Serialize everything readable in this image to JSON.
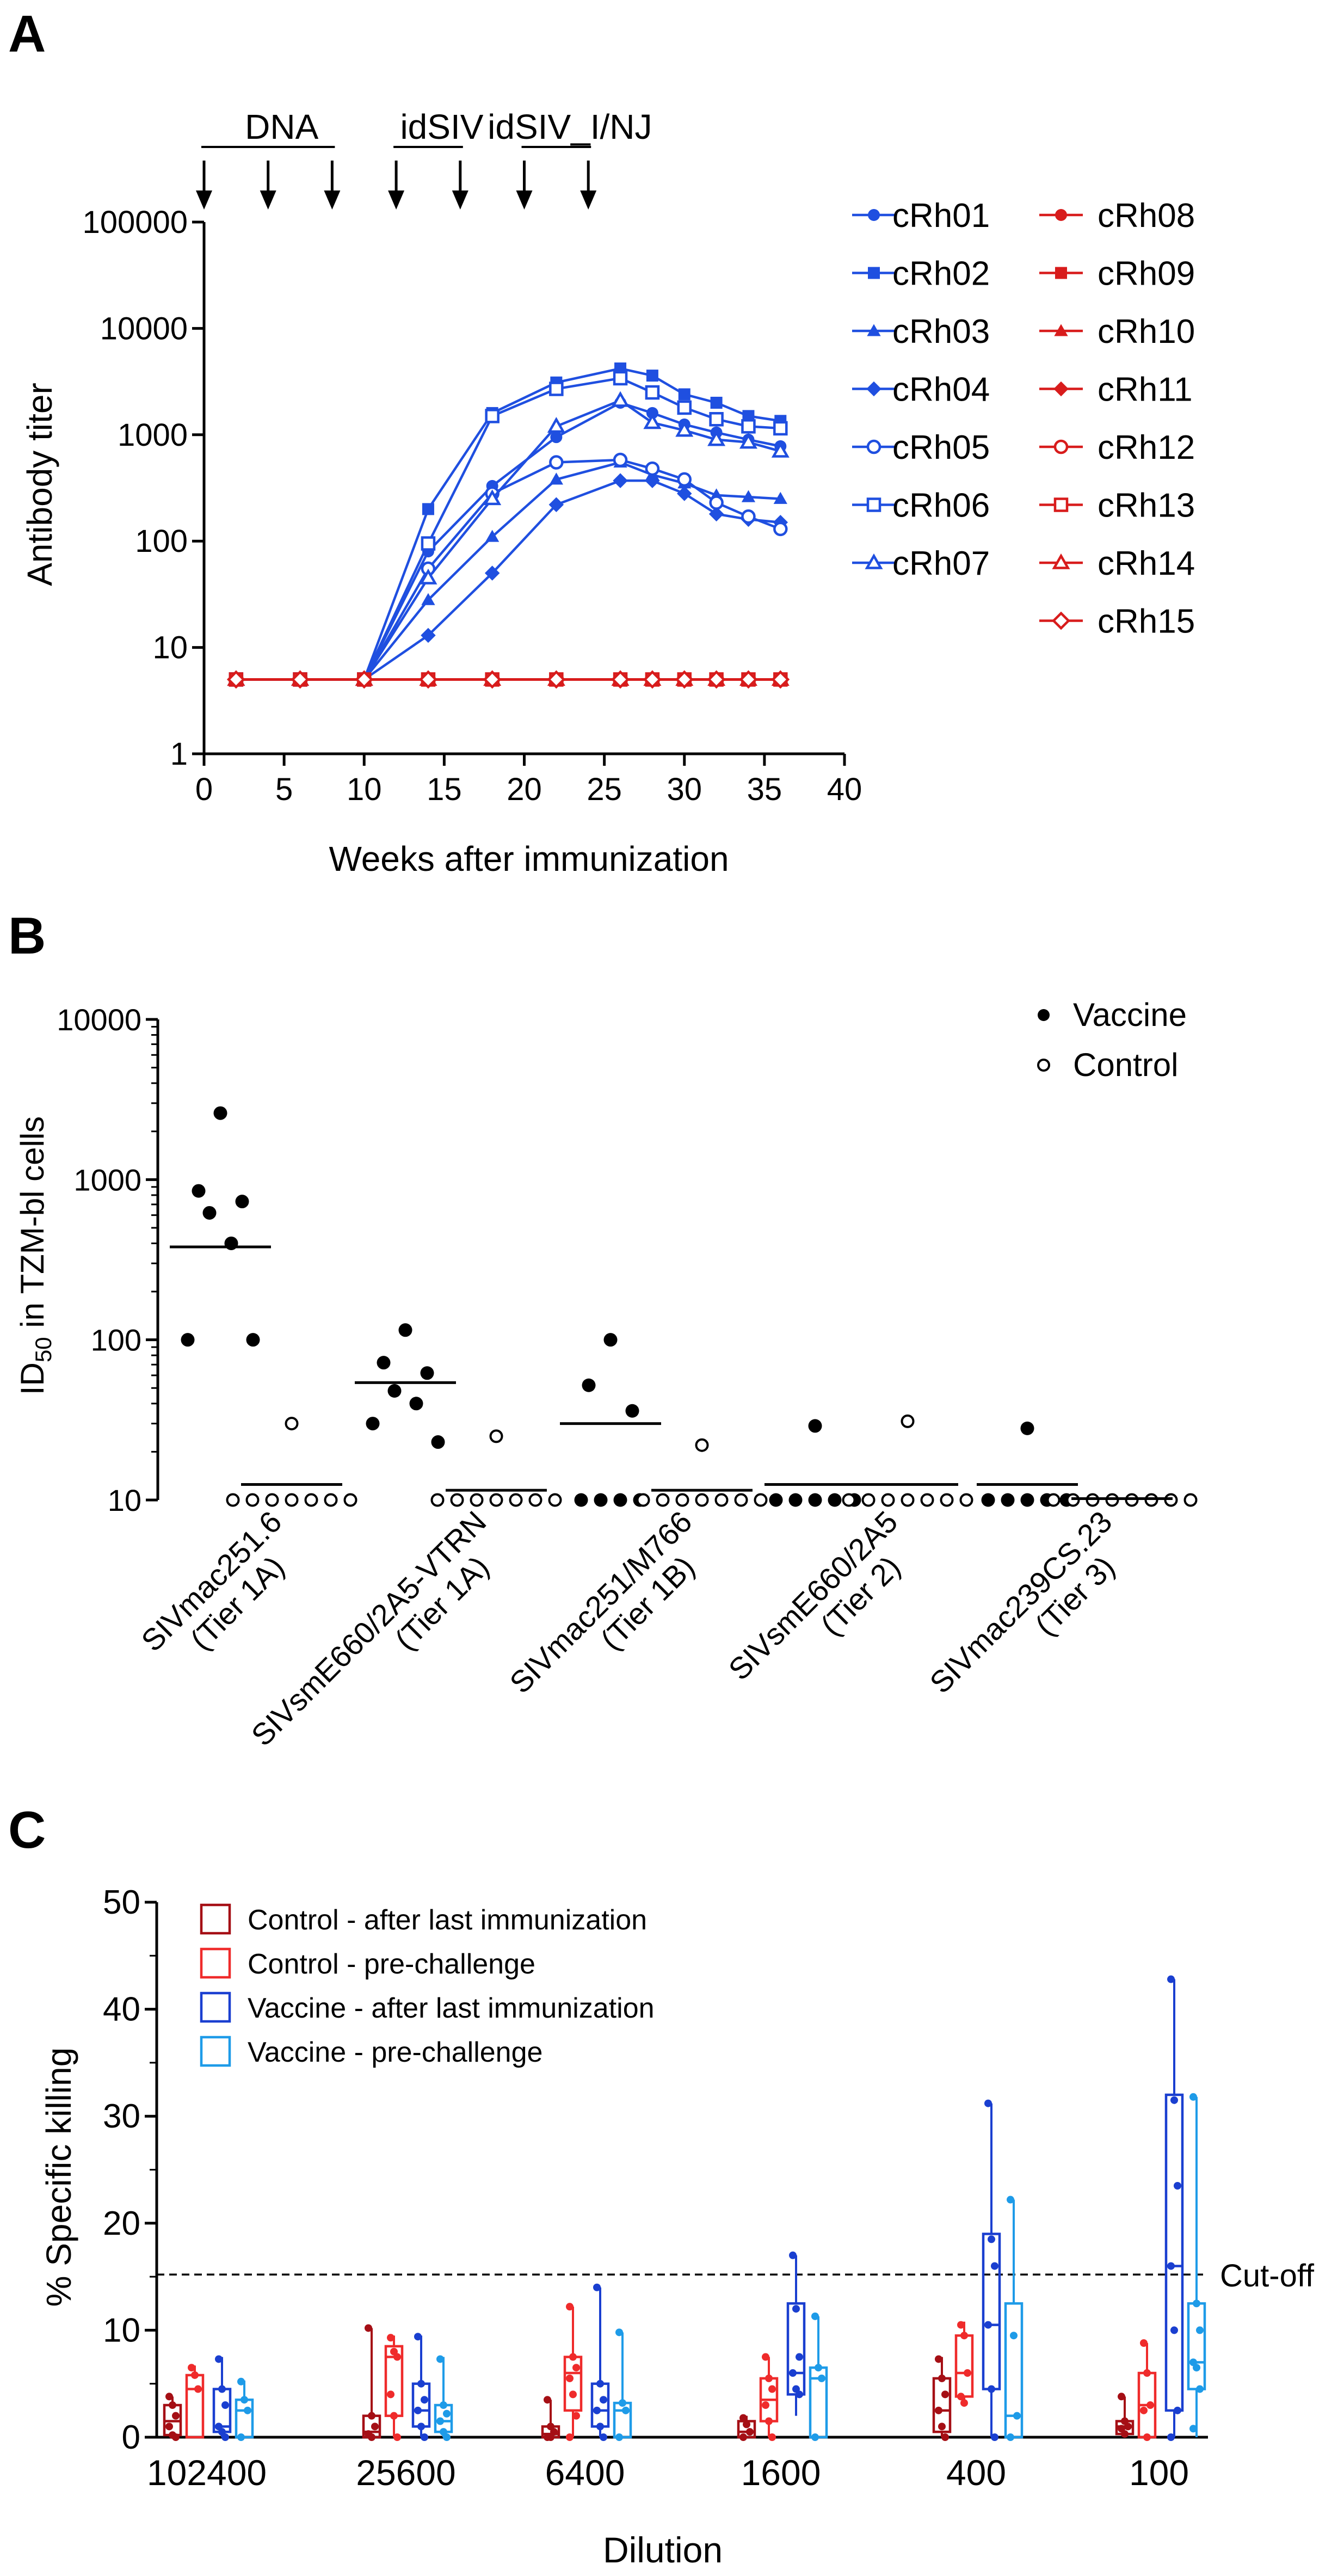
{
  "panels": {
    "A": {
      "letter": "A"
    },
    "B": {
      "letter": "B"
    },
    "C": {
      "letter": "C"
    }
  },
  "colors": {
    "vaccine_group": "#1f4fe0",
    "control_group": "#d81c1c",
    "control_after": "#a50f15",
    "control_pre": "#ef2b2b",
    "vaccine_after": "#1a3fd0",
    "vaccine_pre": "#1e9be8"
  },
  "chart_data": [
    {
      "type": "line",
      "panel": "A",
      "xlabel": "Weeks after immunization",
      "ylabel": "Antibody titer",
      "yscale": "log",
      "xlim": [
        0,
        40
      ],
      "ylim": [
        1,
        100000
      ],
      "x_ticks": [
        "0",
        "5",
        "10",
        "15",
        "20",
        "25",
        "30",
        "35",
        "40"
      ],
      "y_ticks": [
        "1",
        "10",
        "100",
        "1000",
        "10000",
        "100000"
      ],
      "immunization_phases": [
        {
          "label": "DNA",
          "weeks": [
            0,
            4,
            8
          ]
        },
        {
          "label": "idSIV",
          "weeks": [
            12,
            16
          ]
        },
        {
          "label": "idSIV_I/NJ",
          "weeks": [
            20,
            24
          ]
        }
      ],
      "x": [
        2,
        6,
        10,
        14,
        18,
        22,
        26,
        28,
        30,
        32,
        34,
        36
      ],
      "series": [
        {
          "name": "cRh01",
          "group": "vaccine",
          "marker": "circle",
          "fill": "filled",
          "values": [
            5,
            5,
            5,
            80,
            330,
            950,
            2000,
            1600,
            1250,
            1050,
            900,
            780
          ]
        },
        {
          "name": "cRh02",
          "group": "vaccine",
          "marker": "square",
          "fill": "filled",
          "values": [
            5,
            5,
            5,
            200,
            1600,
            3100,
            4200,
            3600,
            2400,
            2000,
            1500,
            1350
          ]
        },
        {
          "name": "cRh03",
          "group": "vaccine",
          "marker": "triangle",
          "fill": "filled",
          "values": [
            5,
            5,
            5,
            28,
            110,
            380,
            550,
            420,
            350,
            270,
            260,
            250
          ]
        },
        {
          "name": "cRh04",
          "group": "vaccine",
          "marker": "diamond",
          "fill": "filled",
          "values": [
            5,
            5,
            5,
            13,
            50,
            220,
            370,
            370,
            280,
            180,
            160,
            150
          ]
        },
        {
          "name": "cRh05",
          "group": "vaccine",
          "marker": "circle",
          "fill": "open",
          "values": [
            5,
            5,
            5,
            55,
            280,
            550,
            580,
            480,
            380,
            230,
            170,
            130
          ]
        },
        {
          "name": "cRh06",
          "group": "vaccine",
          "marker": "square",
          "fill": "open",
          "values": [
            5,
            5,
            5,
            95,
            1500,
            2700,
            3400,
            2500,
            1800,
            1400,
            1200,
            1150
          ]
        },
        {
          "name": "cRh07",
          "group": "vaccine",
          "marker": "triangle",
          "fill": "open",
          "values": [
            5,
            5,
            5,
            45,
            250,
            1200,
            2100,
            1300,
            1100,
            900,
            850,
            700
          ]
        },
        {
          "name": "cRh08",
          "group": "control",
          "marker": "circle",
          "fill": "filled",
          "values": [
            5,
            5,
            5,
            5,
            5,
            5,
            5,
            5,
            5,
            5,
            5,
            5
          ]
        },
        {
          "name": "cRh09",
          "group": "control",
          "marker": "square",
          "fill": "filled",
          "values": [
            5,
            5,
            5,
            5,
            5,
            5,
            5,
            5,
            5,
            5,
            5,
            5
          ]
        },
        {
          "name": "cRh10",
          "group": "control",
          "marker": "triangle",
          "fill": "filled",
          "values": [
            5,
            5,
            5,
            5,
            5,
            5,
            5,
            5,
            5,
            5,
            5,
            5
          ]
        },
        {
          "name": "cRh11",
          "group": "control",
          "marker": "diamond",
          "fill": "filled",
          "values": [
            5,
            5,
            5,
            5,
            5,
            5,
            5,
            5,
            5,
            5,
            5,
            5
          ]
        },
        {
          "name": "cRh12",
          "group": "control",
          "marker": "circle",
          "fill": "open",
          "values": [
            5,
            5,
            5,
            5,
            5,
            5,
            5,
            5,
            5,
            5,
            5,
            5
          ]
        },
        {
          "name": "cRh13",
          "group": "control",
          "marker": "square",
          "fill": "open",
          "values": [
            5,
            5,
            5,
            5,
            5,
            5,
            5,
            5,
            5,
            5,
            5,
            5
          ]
        },
        {
          "name": "cRh14",
          "group": "control",
          "marker": "triangle",
          "fill": "open",
          "values": [
            5,
            5,
            5,
            5,
            5,
            5,
            5,
            5,
            5,
            5,
            5,
            5
          ]
        },
        {
          "name": "cRh15",
          "group": "control",
          "marker": "diamond",
          "fill": "open",
          "values": [
            5,
            5,
            5,
            5,
            5,
            5,
            5,
            5,
            5,
            5,
            5,
            5
          ]
        }
      ]
    },
    {
      "type": "scatter",
      "panel": "B",
      "ylabel": "ID50 in TZM-bl cells",
      "ylabel_main": "ID",
      "ylabel_sub": "50",
      "ylabel_rest": " in TZM-bl cells",
      "yscale": "log",
      "ylim": [
        10,
        10000
      ],
      "y_ticks": [
        "10",
        "100",
        "1000",
        "10000"
      ],
      "legend": [
        {
          "label": "Vaccine",
          "marker": "filled"
        },
        {
          "label": "Control",
          "marker": "open"
        }
      ],
      "categories": [
        {
          "name": "SIVmac251.6",
          "tier": "(Tier 1A)",
          "vaccine": [
            2600,
            850,
            730,
            620,
            400,
            100,
            100
          ],
          "vaccine_median": 380,
          "control": [
            30,
            10,
            10,
            10,
            10,
            10,
            10,
            10
          ],
          "control_median": 12.5
        },
        {
          "name": "SIVsmE660/2A5-VTRN",
          "tier": "(Tier 1A)",
          "vaccine": [
            115,
            72,
            62,
            48,
            40,
            30,
            23
          ],
          "vaccine_median": 54,
          "control": [
            25,
            10,
            10,
            10,
            10,
            10,
            10,
            10
          ],
          "control_median": 11.5
        },
        {
          "name": "SIVmac251/M766",
          "tier": "(Tier 1B)",
          "vaccine": [
            100,
            52,
            36,
            10,
            10,
            10,
            10
          ],
          "vaccine_median": 30,
          "control": [
            22,
            10,
            10,
            10,
            10,
            10,
            10,
            10
          ],
          "control_median": 11.5
        },
        {
          "name": "SIVsmE660/2A5",
          "tier": "(Tier 2)",
          "vaccine": [
            29,
            10,
            10,
            10,
            10,
            10
          ],
          "vaccine_median": 12.5,
          "control": [
            31,
            10,
            10,
            10,
            10,
            10,
            10,
            10
          ],
          "control_median": 12.5
        },
        {
          "name": "SIVmac239CS.23",
          "tier": "(Tier 3)",
          "vaccine": [
            28,
            10,
            10,
            10,
            10,
            10
          ],
          "vaccine_median": 12.5,
          "control": [
            10,
            10,
            10,
            10,
            10,
            10,
            10,
            10
          ],
          "control_median": 10.2
        }
      ]
    },
    {
      "type": "box",
      "panel": "C",
      "xlabel": "Dilution",
      "ylabel": "% Specific killing",
      "ylim": [
        0,
        50
      ],
      "y_ticks": [
        "0",
        "10",
        "20",
        "30",
        "40",
        "50"
      ],
      "cutoff": {
        "value": 15.2,
        "label": "Cut-off"
      },
      "categories": [
        "102400",
        "25600",
        "6400",
        "1600",
        "400",
        "100"
      ],
      "series": [
        {
          "name": "Control - after last immunization",
          "color_key": "control_after",
          "boxes": [
            {
              "min": 0,
              "q1": 0.2,
              "median": 1.5,
              "q3": 3,
              "max": 3.8,
              "points": [
                3.8,
                3,
                2,
                1,
                0.2,
                0
              ]
            },
            {
              "min": 0,
              "q1": 0,
              "median": 0.5,
              "q3": 2,
              "max": 10.2,
              "points": [
                10.2,
                2,
                1,
                0.3,
                0
              ]
            },
            {
              "min": 0,
              "q1": 0,
              "median": 0.3,
              "q3": 1,
              "max": 3.5,
              "points": [
                3.5,
                1,
                0.5,
                0,
                0
              ]
            },
            {
              "min": 0,
              "q1": 0,
              "median": 0.5,
              "q3": 1.5,
              "max": 2,
              "points": [
                1.8,
                1.2,
                0.5,
                0
              ]
            },
            {
              "min": 0,
              "q1": 0.5,
              "median": 2.5,
              "q3": 5.5,
              "max": 7.5,
              "points": [
                7.3,
                5.5,
                4,
                2.5,
                1,
                0
              ]
            },
            {
              "min": 0,
              "q1": 0.3,
              "median": 1,
              "q3": 1.5,
              "max": 3.8,
              "points": [
                3.8,
                1.5,
                1,
                0.8,
                0.3
              ]
            }
          ]
        },
        {
          "name": "Control - pre-challenge",
          "color_key": "control_pre",
          "boxes": [
            {
              "min": 0,
              "q1": 0,
              "median": 4.5,
              "q3": 5.8,
              "max": 6.7,
              "points": [
                6.5,
                5.8,
                4.5
              ]
            },
            {
              "min": 0,
              "q1": 2,
              "median": 7.5,
              "q3": 8.5,
              "max": 9.5,
              "points": [
                9.3,
                8,
                7.5,
                4,
                2,
                0
              ]
            },
            {
              "min": 0,
              "q1": 2.5,
              "median": 6,
              "q3": 7.5,
              "max": 12.2,
              "points": [
                12.2,
                7.5,
                6.5,
                5.5,
                4,
                2,
                0
              ]
            },
            {
              "min": 0,
              "q1": 1.5,
              "median": 3.5,
              "q3": 5.5,
              "max": 7.5,
              "points": [
                7.5,
                5.5,
                4.5,
                3,
                1.5,
                0
              ]
            },
            {
              "min": 3,
              "q1": 3.8,
              "median": 6,
              "q3": 9.5,
              "max": 10.8,
              "points": [
                10.5,
                9.5,
                6,
                3.8,
                3.2
              ]
            },
            {
              "min": 0,
              "q1": 0,
              "median": 3,
              "q3": 6,
              "max": 8.8,
              "points": [
                8.8,
                6,
                3,
                2.5,
                0
              ]
            }
          ]
        },
        {
          "name": "Vaccine - after last immunization",
          "color_key": "vaccine_after",
          "boxes": [
            {
              "min": 0,
              "q1": 0.5,
              "median": 1,
              "q3": 4.5,
              "max": 7.5,
              "points": [
                7.3,
                4.5,
                3,
                1,
                0.5,
                0
              ]
            },
            {
              "min": 0,
              "q1": 1,
              "median": 2.5,
              "q3": 5,
              "max": 9.5,
              "points": [
                9.4,
                5,
                3.5,
                2.5,
                1,
                0
              ]
            },
            {
              "min": 0,
              "q1": 1,
              "median": 2.5,
              "q3": 5,
              "max": 14,
              "points": [
                14,
                5,
                3.5,
                2.5,
                1,
                0
              ]
            },
            {
              "min": 2,
              "q1": 4,
              "median": 6,
              "q3": 12.5,
              "max": 17,
              "points": [
                17,
                12,
                7.5,
                6,
                4.5,
                4
              ]
            },
            {
              "min": 0,
              "q1": 4.5,
              "median": 10.5,
              "q3": 19,
              "max": 31.2,
              "points": [
                31.2,
                18.5,
                16,
                10.5,
                4.5,
                0
              ]
            },
            {
              "min": 0,
              "q1": 2.5,
              "median": 16,
              "q3": 32,
              "max": 42.8,
              "points": [
                42.8,
                31.5,
                23.5,
                16,
                10,
                2.5,
                0
              ]
            }
          ]
        },
        {
          "name": "Vaccine - pre-challenge",
          "color_key": "vaccine_pre",
          "boxes": [
            {
              "min": 0,
              "q1": 0,
              "median": 2.5,
              "q3": 3.5,
              "max": 5.3,
              "points": [
                5.2,
                3.5,
                2.5,
                0
              ]
            },
            {
              "min": 0,
              "q1": 0.5,
              "median": 1.5,
              "q3": 3,
              "max": 7.5,
              "points": [
                7.3,
                3,
                2.2,
                1.5,
                0.5,
                0
              ]
            },
            {
              "min": 0,
              "q1": 0,
              "median": 2.5,
              "q3": 3.2,
              "max": 9.8,
              "points": [
                9.8,
                3.2,
                2.5,
                0
              ]
            },
            {
              "min": 0,
              "q1": 0,
              "median": 5.5,
              "q3": 6.5,
              "max": 11.3,
              "points": [
                11.3,
                6.5,
                5.5,
                0
              ]
            },
            {
              "min": 0,
              "q1": 0,
              "median": 2,
              "q3": 12.5,
              "max": 22.2,
              "points": [
                22.2,
                9.5,
                2,
                0
              ]
            },
            {
              "min": 0,
              "q1": 4.5,
              "median": 7,
              "q3": 12.5,
              "max": 31.8,
              "points": [
                31.8,
                12.5,
                10,
                7,
                6.5,
                4.5,
                0.8
              ]
            }
          ]
        }
      ]
    }
  ]
}
